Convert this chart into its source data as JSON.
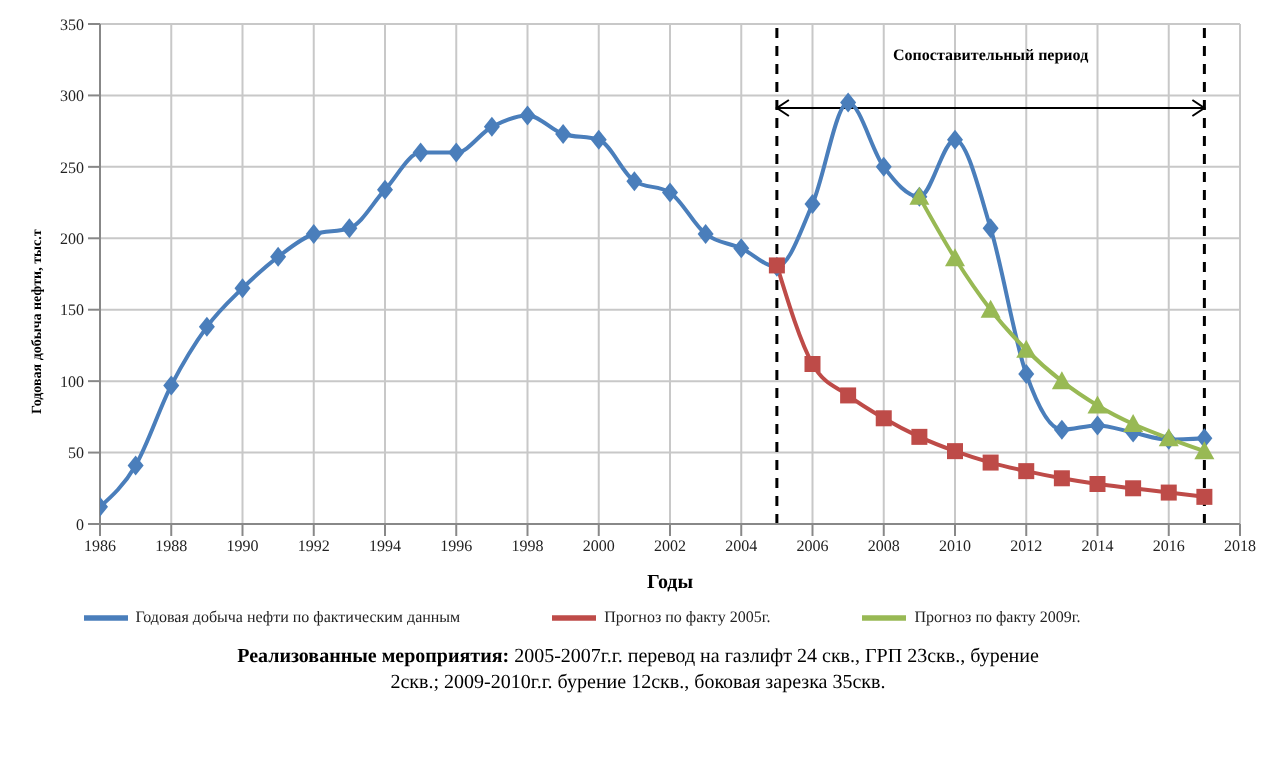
{
  "chart_data": {
    "type": "line",
    "xlabel": "Годы",
    "ylabel": "Годовая добыча нефти, тыс.т",
    "x": [
      1986,
      1987,
      1988,
      1989,
      1990,
      1991,
      1992,
      1993,
      1994,
      1995,
      1996,
      1997,
      1998,
      1999,
      2000,
      2001,
      2002,
      2003,
      2004,
      2005,
      2006,
      2007,
      2008,
      2009,
      2010,
      2011,
      2012,
      2013,
      2014,
      2015,
      2016,
      2017
    ],
    "series": [
      {
        "name": "Годовая добыча нефти по фактическим данным",
        "color": "#4a7ebb",
        "marker": "diamond",
        "values": [
          12,
          41,
          97,
          138,
          165,
          187,
          203,
          207,
          234,
          260,
          260,
          278,
          286,
          273,
          269,
          240,
          232,
          203,
          193,
          180,
          224,
          295,
          250,
          229,
          269,
          207,
          105,
          66,
          69,
          64,
          59,
          60
        ]
      },
      {
        "name": "Прогноз по факту 2005г.",
        "color": "#be4b48",
        "marker": "square",
        "values": [
          null,
          null,
          null,
          null,
          null,
          null,
          null,
          null,
          null,
          null,
          null,
          null,
          null,
          null,
          null,
          null,
          null,
          null,
          null,
          181,
          112,
          90,
          74,
          61,
          51,
          43,
          37,
          32,
          28,
          25,
          22,
          19
        ]
      },
      {
        "name": "Прогноз по факту 2009г.",
        "color": "#98b954",
        "marker": "triangle",
        "values": [
          null,
          null,
          null,
          null,
          null,
          null,
          null,
          null,
          null,
          null,
          null,
          null,
          null,
          null,
          null,
          null,
          null,
          null,
          null,
          null,
          null,
          null,
          null,
          229,
          186,
          150,
          122,
          100,
          83,
          70,
          60,
          51
        ]
      }
    ],
    "xlim": [
      1986,
      2018
    ],
    "xticks": [
      1986,
      1988,
      1990,
      1992,
      1994,
      1996,
      1998,
      2000,
      2002,
      2004,
      2006,
      2008,
      2010,
      2012,
      2014,
      2016,
      2018
    ],
    "ylim": [
      0,
      350
    ],
    "yticks": [
      0,
      50,
      100,
      150,
      200,
      250,
      300,
      350
    ],
    "grid": true,
    "legend": "bottom",
    "line_style": "solid",
    "ref_lines": [
      {
        "axis": "x",
        "value": 2005,
        "color": "#000000",
        "line_style": "dashed"
      },
      {
        "axis": "x",
        "value": 2017,
        "color": "#000000",
        "line_style": "dashed"
      }
    ],
    "annotations": [
      "Сопоставительный период",
      "Реализованные мероприятия:",
      "2005-2007г.г. перевод на газлифт 24 скв., ГРП 23скв., бурение 2скв.; 2009-2010г.г. бурение 12скв., боковая зарезка 35скв."
    ]
  }
}
